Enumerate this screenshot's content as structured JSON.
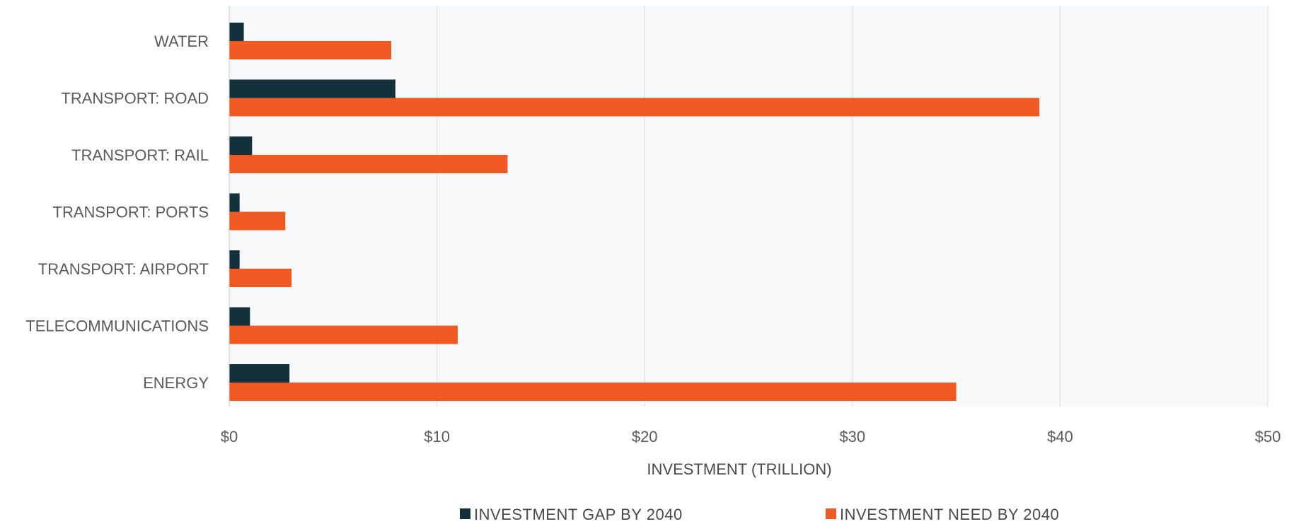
{
  "chart_data": {
    "type": "bar",
    "orientation": "horizontal",
    "categories": [
      "WATER",
      "TRANSPORT: ROAD",
      "TRANSPORT: RAIL",
      "TRANSPORT: PORTS",
      "TRANSPORT: AIRPORT",
      "TELECOMMUNICATIONS",
      "ENERGY"
    ],
    "series": [
      {
        "name": "INVESTMENT GAP BY 2040",
        "color": "#13313a",
        "values": [
          0.7,
          8.0,
          1.1,
          0.5,
          0.5,
          1.0,
          2.9
        ]
      },
      {
        "name": "INVESTMENT NEED BY 2040",
        "color": "#f05a22",
        "values": [
          7.8,
          39.0,
          13.4,
          2.7,
          3.0,
          11.0,
          35.0
        ]
      }
    ],
    "title": "",
    "xlabel": "INVESTMENT (TRILLION)",
    "ylabel": "",
    "xlim": [
      0,
      50
    ],
    "x_ticks": [
      0,
      10,
      20,
      30,
      40,
      50
    ],
    "x_tick_labels": [
      "$0",
      "$10",
      "$20",
      "$30",
      "$40",
      "$50"
    ],
    "grid": true,
    "plot_background": "#f7f8fa",
    "legend_position": "bottom"
  }
}
